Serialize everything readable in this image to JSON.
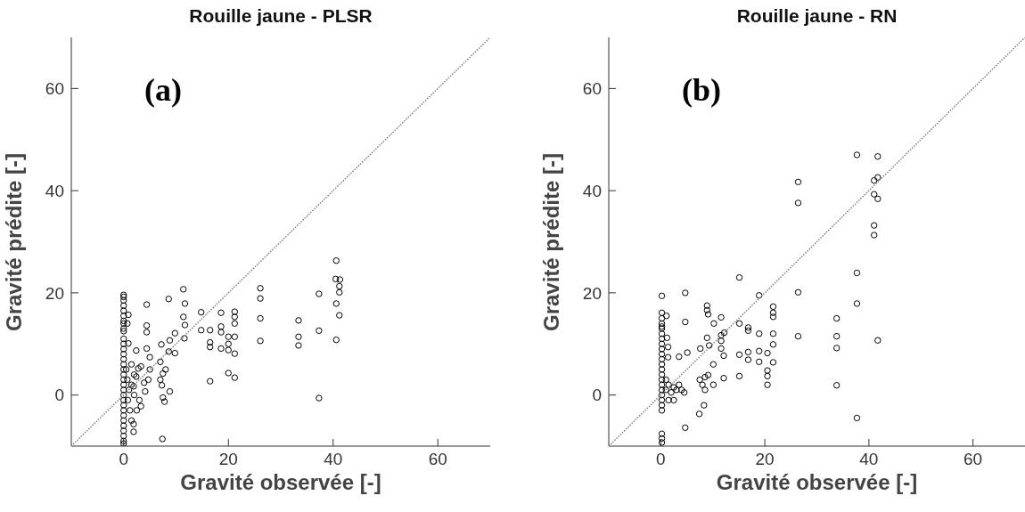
{
  "chart_data": [
    {
      "type": "scatter",
      "title": "Rouille jaune - PLSR",
      "xlabel": "Gravité observée [-]",
      "ylabel": "Gravité prédite [-]",
      "annotations": [
        "(a)"
      ],
      "xlim": [
        -10,
        70
      ],
      "ylim": [
        -10,
        70
      ],
      "xticks": [
        0,
        20,
        40,
        60
      ],
      "yticks": [
        0,
        20,
        40,
        60
      ],
      "grid": false,
      "series": [
        {
          "marker": "circle",
          "color": "#000000",
          "x": [
            0,
            0,
            0,
            0,
            0,
            0,
            0,
            0,
            0,
            0,
            0,
            0,
            0,
            0,
            0,
            0,
            0,
            0,
            0,
            0,
            0,
            0,
            0,
            0,
            0,
            0,
            0,
            0,
            0,
            0,
            0,
            0,
            0.5,
            0.7,
            1,
            0.8,
            1.2,
            0.9,
            0.7,
            0.9,
            1.5,
            1.5,
            2,
            2,
            2.4,
            2.4,
            2.8,
            1.9,
            1.9,
            1.9,
            3.3,
            3.3,
            3.9,
            4.1,
            4.7,
            5,
            5,
            4.4,
            4.4,
            4.4,
            4.4,
            3,
            2.5,
            1.5,
            7.2,
            7,
            7.5,
            7.3,
            8.8,
            7.8,
            7.4,
            8.6,
            11.4,
            11.7,
            11.4,
            11.7,
            11.6,
            9.8,
            8.8,
            8.6,
            9.8,
            7,
            8,
            7.5,
            14.8,
            14.8,
            16.5,
            16.5,
            16.5,
            16.5,
            18.6,
            18.6,
            18.6,
            18.6,
            20,
            20,
            20,
            20,
            21.2,
            21.2,
            21.2,
            21.2,
            21.2,
            21.2,
            26.1,
            26.1,
            26.1,
            26.1,
            33.4,
            33.4,
            33.4,
            37.3,
            37.3,
            37.3,
            40.6,
            40.5,
            41.3,
            41.2,
            41.2,
            40.6,
            41.2,
            40.6
          ],
          "values": [
            19.6,
            19.2,
            18.5,
            17.5,
            16.5,
            15.5,
            14.5,
            14,
            13,
            12.5,
            11,
            10,
            9,
            8,
            7,
            6,
            5,
            4,
            3,
            2,
            1,
            0,
            -1,
            -2,
            -3,
            -4,
            -5,
            -6,
            -7,
            -8,
            -9,
            -9.5,
            5,
            3,
            1,
            -1,
            -3,
            15.7,
            14,
            10.1,
            6,
            2,
            4,
            0,
            8.7,
            3.6,
            5.2,
            1.7,
            -5.7,
            -7.2,
            5.6,
            -2.2,
            2.4,
            0.7,
            3,
            7.4,
            5,
            17.7,
            13.6,
            12.3,
            9.1,
            -1,
            -3,
            -5,
            9.9,
            6.5,
            4.2,
            1.9,
            0.7,
            -1.3,
            -8.6,
            18.8,
            20.7,
            17.9,
            15.3,
            13.7,
            11.1,
            12.1,
            10.7,
            8.5,
            8.2,
            3,
            5,
            -0.5,
            16.2,
            12.7,
            12.7,
            10.3,
            9.4,
            2.7,
            16.1,
            13.4,
            12.3,
            9.1,
            11.4,
            10,
            8.8,
            4.3,
            16.3,
            15.3,
            14,
            11.4,
            8.1,
            3.4,
            20.9,
            18.9,
            15,
            10.6,
            14.6,
            11.4,
            9.7,
            19.8,
            12.6,
            -0.6,
            26.3,
            22.7,
            22.6,
            21.3,
            20.1,
            17.9,
            15.6,
            10.8
          ]
        },
        {
          "type": "line",
          "color": "#808080",
          "line_style": "dotted",
          "x": [
            -10,
            70
          ],
          "values": [
            -10,
            70
          ]
        }
      ]
    },
    {
      "type": "scatter",
      "title": "Rouille jaune - RN",
      "xlabel": "Gravité observée [-]",
      "ylabel": "Gravité prédite [-]",
      "annotations": [
        "(b)"
      ],
      "xlim": [
        -10,
        70
      ],
      "ylim": [
        -10,
        70
      ],
      "xticks": [
        0,
        20,
        40,
        60
      ],
      "yticks": [
        0,
        20,
        40,
        60
      ],
      "grid": false,
      "series": [
        {
          "marker": "circle",
          "color": "#000000",
          "x": [
            0.2,
            0.2,
            0.2,
            0.2,
            0.2,
            0.2,
            0.2,
            0.2,
            0.2,
            0.2,
            0.2,
            0.2,
            0.2,
            0.2,
            0.2,
            0.2,
            0.2,
            0.2,
            0.2,
            0.2,
            0.2,
            0.2,
            0.2,
            0.2,
            0.2,
            1,
            1.5,
            2,
            2.5,
            3,
            3.5,
            4,
            4.5,
            1,
            1.5,
            2.5,
            1.1,
            1.2,
            1.4,
            1.4,
            3.5,
            5.1,
            4.7,
            4.7,
            7.6,
            7.5,
            8,
            8.5,
            8.5,
            9.1,
            8.3,
            7.4,
            4.7,
            8.9,
            8.9,
            9.1,
            10.2,
            11.6,
            8.9,
            9.3,
            11.6,
            12.2,
            11.6,
            11.6,
            12.1,
            10.1,
            10.1,
            12.1,
            15.1,
            15.1,
            15.1,
            15.1,
            16.8,
            16.8,
            16.8,
            16.8,
            18.9,
            18.9,
            18.9,
            18.9,
            20.5,
            20.5,
            20.5,
            20.5,
            21.6,
            21.6,
            21.6,
            21.6,
            21.6,
            21.6,
            26.4,
            26.4,
            26.4,
            26.4,
            37.7,
            41.7,
            41,
            41.7,
            41,
            41.7,
            41,
            41,
            37.7,
            37.7,
            41.7,
            33.8,
            33.8,
            33.8,
            33.8,
            37.7
          ],
          "values": [
            19.4,
            16.1,
            15,
            14,
            13.4,
            13,
            12,
            11,
            10,
            9,
            8,
            7,
            6,
            5,
            4,
            3,
            2,
            1,
            0,
            -1,
            -2,
            -3,
            -7.6,
            -8.5,
            -9.3,
            1,
            2,
            0.5,
            1.5,
            1,
            2,
            1,
            0.5,
            3,
            -1,
            -1,
            15.5,
            11.2,
            9.4,
            7.4,
            7.5,
            8.3,
            20,
            14.3,
            9.1,
            3,
            2,
            3.5,
            1,
            3.9,
            -2,
            -3.7,
            -6.4,
            17.5,
            16.6,
            15.8,
            14,
            15.2,
            11.2,
            9.7,
            11.7,
            12.2,
            10.6,
            9.1,
            7.7,
            6,
            2,
            3.3,
            23,
            14,
            7.9,
            3.7,
            13.2,
            12.6,
            8.4,
            6.9,
            19.5,
            12,
            8.6,
            6.5,
            8.2,
            4.8,
            3.7,
            2,
            17.3,
            16.1,
            15.3,
            12,
            9.9,
            6.4,
            41.7,
            37.6,
            20.1,
            11.5,
            47,
            46.7,
            42,
            42.6,
            39.3,
            38.4,
            33.2,
            31.3,
            23.9,
            17.9,
            10.7,
            15,
            11.5,
            9.2,
            1.9,
            -4.5
          ]
        },
        {
          "type": "line",
          "color": "#808080",
          "line_style": "dotted",
          "x": [
            -10,
            70
          ],
          "values": [
            -10,
            70
          ]
        }
      ]
    }
  ]
}
